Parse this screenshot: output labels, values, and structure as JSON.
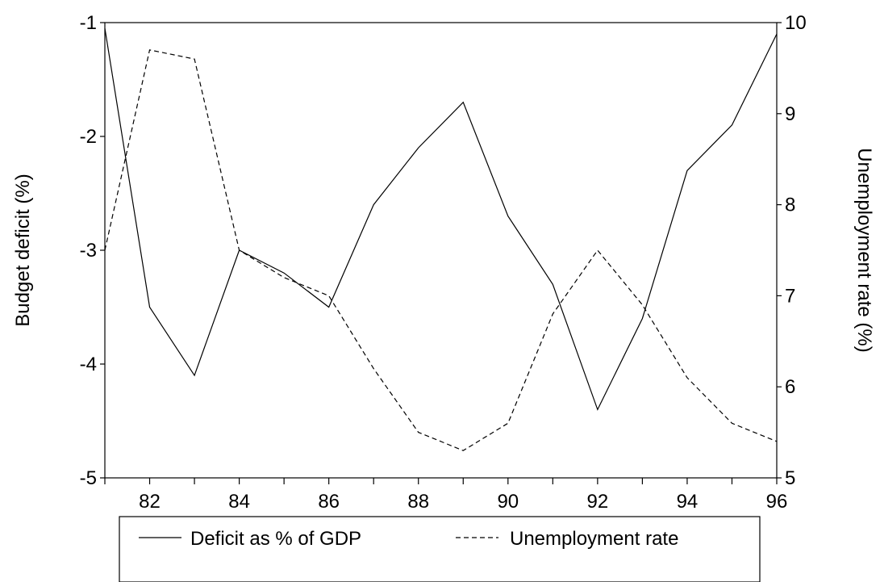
{
  "chart_data": {
    "type": "line",
    "x_tick_labels": [
      "82",
      "84",
      "86",
      "88",
      "90",
      "92",
      "94",
      "96"
    ],
    "x_ticks": [
      82,
      84,
      86,
      88,
      90,
      92,
      94,
      96
    ],
    "xlim": [
      81,
      96
    ],
    "y_left": {
      "label": "Budget deficit (%)",
      "lim": [
        -5,
        -1
      ],
      "ticks": [
        -5,
        -4,
        -3,
        -2,
        -1
      ],
      "tick_labels": [
        "-5",
        "-4",
        "-3",
        "-2",
        "-1"
      ]
    },
    "y_right": {
      "label": "Unemployment rate (%)",
      "lim": [
        5,
        10
      ],
      "ticks": [
        5,
        6,
        7,
        8,
        9,
        10
      ],
      "tick_labels": [
        "5",
        "6",
        "7",
        "8",
        "9",
        "10"
      ]
    },
    "x": [
      81,
      82,
      83,
      84,
      85,
      86,
      87,
      88,
      89,
      90,
      91,
      92,
      93,
      94,
      95,
      96
    ],
    "series": [
      {
        "name": "Deficit as % of GDP",
        "axis": "left",
        "style": "solid",
        "values": [
          -1.05,
          -3.5,
          -4.1,
          -3.0,
          -3.2,
          -3.5,
          -2.6,
          -2.1,
          -1.7,
          -2.7,
          -3.3,
          -4.4,
          -3.6,
          -2.3,
          -1.9,
          -1.1
        ]
      },
      {
        "name": "Unemployment rate",
        "axis": "right",
        "style": "dashed",
        "values": [
          7.5,
          9.7,
          9.6,
          7.5,
          7.2,
          7.0,
          6.2,
          5.5,
          5.3,
          5.6,
          6.8,
          7.5,
          6.9,
          6.1,
          5.6,
          5.4
        ]
      }
    ],
    "grid": false,
    "legend_position": "bottom"
  }
}
